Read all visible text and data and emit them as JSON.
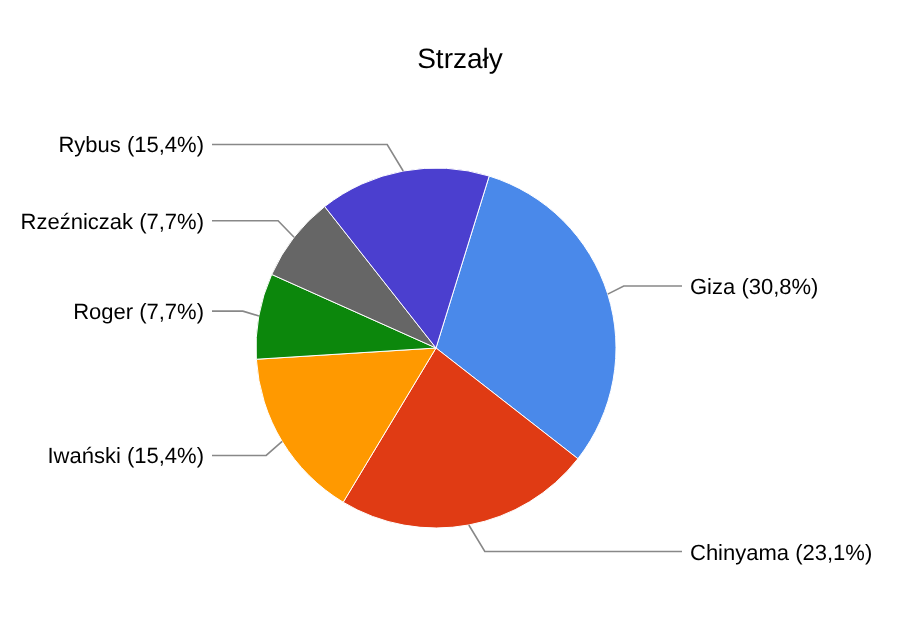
{
  "chart_data": {
    "type": "pie",
    "title": "Strzały",
    "categories": [
      "Giza",
      "Chinyama",
      "Iwański",
      "Roger",
      "Rzeźniczak",
      "Rybus"
    ],
    "values": [
      30.8,
      23.1,
      15.4,
      7.7,
      7.7,
      15.4
    ],
    "value_labels": [
      "(30,8%)",
      "(23,1%)",
      "(15,4%)",
      "(7,7%)",
      "(7,7%)",
      "(15,4%)"
    ],
    "colors": [
      "#4a89ea",
      "#e03b14",
      "#ff9900",
      "#0c870c",
      "#666666",
      "#4b3fcf"
    ]
  }
}
